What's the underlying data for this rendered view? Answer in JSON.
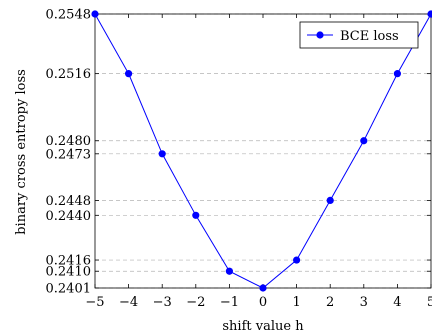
{
  "chart_data": {
    "type": "line",
    "xlabel": "shift value h",
    "ylabel": "binary cross entropy loss",
    "xlim": [
      -5,
      5
    ],
    "ylim": [
      0.2401,
      0.2548
    ],
    "x_ticks": [
      "−5",
      "−4",
      "−3",
      "−2",
      "−1",
      "0",
      "1",
      "2",
      "3",
      "4",
      "5"
    ],
    "y_ticks": [
      "0.2401",
      "0.2410",
      "0.2416",
      "0.2440",
      "0.2448",
      "0.2473",
      "0.2480",
      "0.2516",
      "0.2548"
    ],
    "grid": "horizontal-dashed",
    "legend_position": "top-right",
    "series": [
      {
        "name": "BCE loss",
        "color": "#0000ff",
        "marker": "circle",
        "x": [
          -5,
          -4,
          -3,
          -2,
          -1,
          0,
          1,
          2,
          3,
          4,
          5
        ],
        "y": [
          0.2548,
          0.2516,
          0.2473,
          0.244,
          0.241,
          0.2401,
          0.2416,
          0.2448,
          0.248,
          0.2516,
          0.2548
        ]
      }
    ]
  }
}
